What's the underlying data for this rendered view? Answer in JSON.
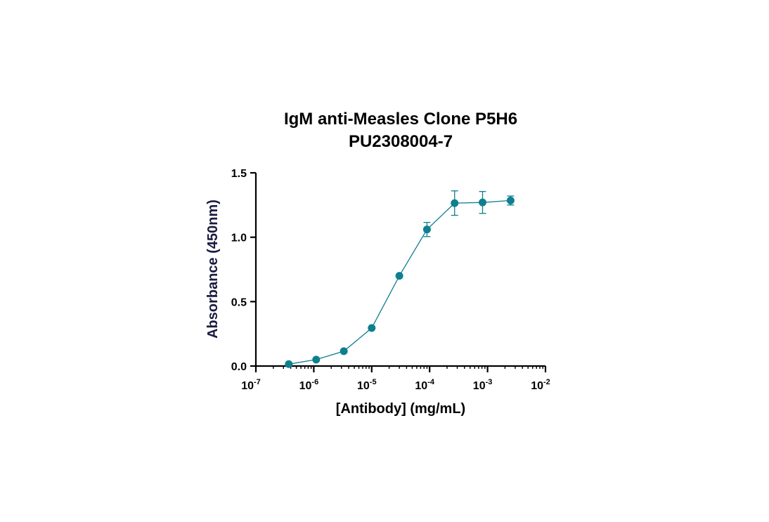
{
  "chart_data": {
    "type": "scatter",
    "title": "IgM anti-Measles Clone P5H6",
    "subtitle": "PU2308004-7",
    "xlabel": "[Antibody] (mg/mL)",
    "ylabel": "Absorbance (450nm)",
    "x_scale": "log",
    "xlim": [
      1e-07,
      0.01
    ],
    "ylim": [
      0,
      1.5
    ],
    "x_ticks": [
      {
        "value": 1e-07,
        "base": "10",
        "exp": "-7"
      },
      {
        "value": 1e-06,
        "base": "10",
        "exp": "-6"
      },
      {
        "value": 1e-05,
        "base": "10",
        "exp": "-5"
      },
      {
        "value": 0.0001,
        "base": "10",
        "exp": "-4"
      },
      {
        "value": 0.001,
        "base": "10",
        "exp": "-3"
      },
      {
        "value": 0.01,
        "base": "10",
        "exp": "-2"
      }
    ],
    "y_ticks": [
      {
        "value": 0,
        "label": "0.0"
      },
      {
        "value": 0.5,
        "label": "0.5"
      },
      {
        "value": 1.0,
        "label": "1.0"
      },
      {
        "value": 1.5,
        "label": "1.5"
      }
    ],
    "grid": false,
    "legend": "none",
    "series": [
      {
        "color": "#0e7f8f",
        "marker": "circle",
        "connected": true,
        "x": [
          3.7e-07,
          1.1e-06,
          3.3e-06,
          1e-05,
          3e-05,
          9e-05,
          0.00027,
          0.00082,
          0.0025
        ],
        "y": [
          0.015,
          0.05,
          0.115,
          0.295,
          0.7,
          1.06,
          1.265,
          1.27,
          1.285
        ],
        "error": [
          0,
          0,
          0,
          0,
          0,
          0.055,
          0.095,
          0.085,
          0.035
        ]
      }
    ]
  }
}
